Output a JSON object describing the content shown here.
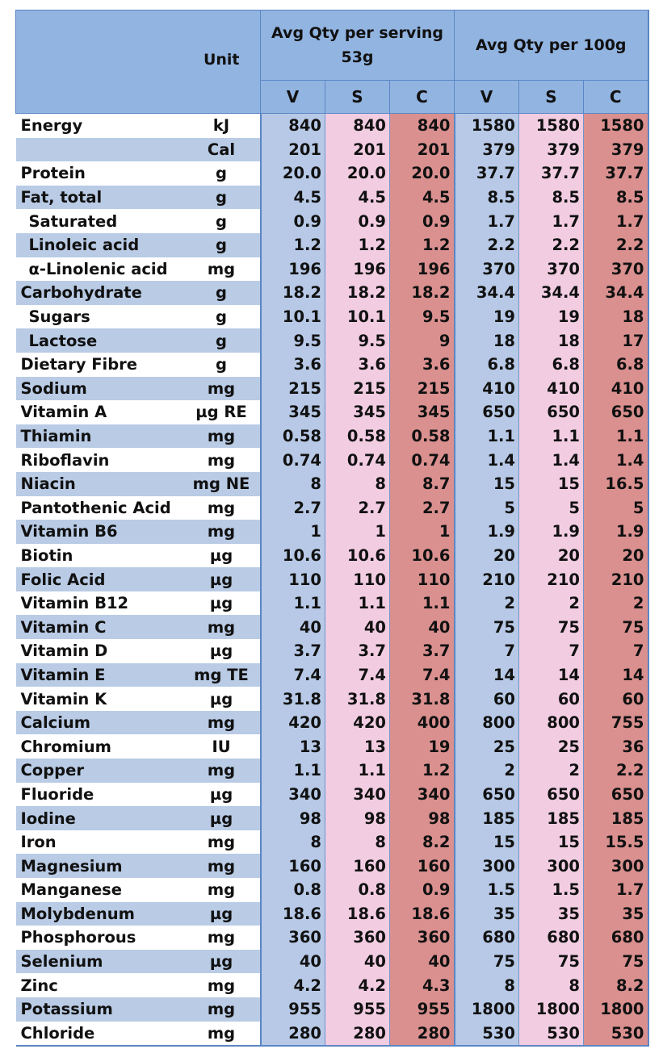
{
  "header": {
    "unit_label": "Unit",
    "per_serving_line1": "Avg Qty per serving",
    "per_serving_line2": "53g",
    "per_100g": "Avg Qty per 100g",
    "sub_cols": [
      "V",
      "S",
      "C",
      "V",
      "S",
      "C"
    ]
  },
  "rows": [
    {
      "name": "Energy",
      "unit": "kJ",
      "vals": [
        "840",
        "840",
        "840",
        "1580",
        "1580",
        "1580"
      ]
    },
    {
      "name": "",
      "unit": "Cal",
      "vals": [
        "201",
        "201",
        "201",
        "379",
        "379",
        "379"
      ]
    },
    {
      "name": "Protein",
      "unit": "g",
      "vals": [
        "20.0",
        "20.0",
        "20.0",
        "37.7",
        "37.7",
        "37.7"
      ]
    },
    {
      "name": "Fat, total",
      "unit": "g",
      "vals": [
        "4.5",
        "4.5",
        "4.5",
        "8.5",
        "8.5",
        "8.5"
      ]
    },
    {
      "name": "Saturated",
      "unit": "g",
      "sub": true,
      "vals": [
        "0.9",
        "0.9",
        "0.9",
        "1.7",
        "1.7",
        "1.7"
      ]
    },
    {
      "name": "Linoleic acid",
      "unit": "g",
      "sub": true,
      "vals": [
        "1.2",
        "1.2",
        "1.2",
        "2.2",
        "2.2",
        "2.2"
      ]
    },
    {
      "name": "α-Linolenic acid",
      "unit": "mg",
      "sub": true,
      "vals": [
        "196",
        "196",
        "196",
        "370",
        "370",
        "370"
      ]
    },
    {
      "name": "Carbohydrate",
      "unit": "g",
      "vals": [
        "18.2",
        "18.2",
        "18.2",
        "34.4",
        "34.4",
        "34.4"
      ]
    },
    {
      "name": "Sugars",
      "unit": "g",
      "sub": true,
      "vals": [
        "10.1",
        "10.1",
        "9.5",
        "19",
        "19",
        "18"
      ]
    },
    {
      "name": "Lactose",
      "unit": "g",
      "sub": true,
      "vals": [
        "9.5",
        "9.5",
        "9",
        "18",
        "18",
        "17"
      ]
    },
    {
      "name": "Dietary Fibre",
      "unit": "g",
      "vals": [
        "3.6",
        "3.6",
        "3.6",
        "6.8",
        "6.8",
        "6.8"
      ]
    },
    {
      "name": "Sodium",
      "unit": "mg",
      "vals": [
        "215",
        "215",
        "215",
        "410",
        "410",
        "410"
      ]
    },
    {
      "name": "Vitamin A",
      "unit": "µg RE",
      "vals": [
        "345",
        "345",
        "345",
        "650",
        "650",
        "650"
      ]
    },
    {
      "name": "Thiamin",
      "unit": "mg",
      "vals": [
        "0.58",
        "0.58",
        "0.58",
        "1.1",
        "1.1",
        "1.1"
      ]
    },
    {
      "name": "Riboflavin",
      "unit": "mg",
      "vals": [
        "0.74",
        "0.74",
        "0.74",
        "1.4",
        "1.4",
        "1.4"
      ]
    },
    {
      "name": "Niacin",
      "unit": "mg NE",
      "vals": [
        "8",
        "8",
        "8.7",
        "15",
        "15",
        "16.5"
      ]
    },
    {
      "name": "Pantothenic Acid",
      "unit": "mg",
      "vals": [
        "2.7",
        "2.7",
        "2.7",
        "5",
        "5",
        "5"
      ]
    },
    {
      "name": "Vitamin B6",
      "unit": "mg",
      "vals": [
        "1",
        "1",
        "1",
        "1.9",
        "1.9",
        "1.9"
      ]
    },
    {
      "name": "Biotin",
      "unit": "µg",
      "vals": [
        "10.6",
        "10.6",
        "10.6",
        "20",
        "20",
        "20"
      ]
    },
    {
      "name": "Folic Acid",
      "unit": "µg",
      "vals": [
        "110",
        "110",
        "110",
        "210",
        "210",
        "210"
      ]
    },
    {
      "name": "Vitamin B12",
      "unit": "µg",
      "vals": [
        "1.1",
        "1.1",
        "1.1",
        "2",
        "2",
        "2"
      ]
    },
    {
      "name": "Vitamin C",
      "unit": "mg",
      "vals": [
        "40",
        "40",
        "40",
        "75",
        "75",
        "75"
      ]
    },
    {
      "name": "Vitamin D",
      "unit": "µg",
      "vals": [
        "3.7",
        "3.7",
        "3.7",
        "7",
        "7",
        "7"
      ]
    },
    {
      "name": "Vitamin E",
      "unit": "mg TE",
      "vals": [
        "7.4",
        "7.4",
        "7.4",
        "14",
        "14",
        "14"
      ]
    },
    {
      "name": "Vitamin K",
      "unit": "µg",
      "vals": [
        "31.8",
        "31.8",
        "31.8",
        "60",
        "60",
        "60"
      ]
    },
    {
      "name": "Calcium",
      "unit": "mg",
      "vals": [
        "420",
        "420",
        "400",
        "800",
        "800",
        "755"
      ]
    },
    {
      "name": "Chromium",
      "unit": "IU",
      "vals": [
        "13",
        "13",
        "19",
        "25",
        "25",
        "36"
      ]
    },
    {
      "name": "Copper",
      "unit": "mg",
      "vals": [
        "1.1",
        "1.1",
        "1.2",
        "2",
        "2",
        "2.2"
      ]
    },
    {
      "name": "Fluoride",
      "unit": "µg",
      "vals": [
        "340",
        "340",
        "340",
        "650",
        "650",
        "650"
      ]
    },
    {
      "name": "Iodine",
      "unit": "µg",
      "vals": [
        "98",
        "98",
        "98",
        "185",
        "185",
        "185"
      ]
    },
    {
      "name": "Iron",
      "unit": "mg",
      "vals": [
        "8",
        "8",
        "8.2",
        "15",
        "15",
        "15.5"
      ]
    },
    {
      "name": "Magnesium",
      "unit": "mg",
      "vals": [
        "160",
        "160",
        "160",
        "300",
        "300",
        "300"
      ]
    },
    {
      "name": "Manganese",
      "unit": "mg",
      "vals": [
        "0.8",
        "0.8",
        "0.9",
        "1.5",
        "1.5",
        "1.7"
      ]
    },
    {
      "name": "Molybdenum",
      "unit": "µg",
      "vals": [
        "18.6",
        "18.6",
        "18.6",
        "35",
        "35",
        "35"
      ]
    },
    {
      "name": "Phosphorous",
      "unit": "mg",
      "vals": [
        "360",
        "360",
        "360",
        "680",
        "680",
        "680"
      ]
    },
    {
      "name": "Selenium",
      "unit": "µg",
      "vals": [
        "40",
        "40",
        "40",
        "75",
        "75",
        "75"
      ]
    },
    {
      "name": "Zinc",
      "unit": "mg",
      "vals": [
        "4.2",
        "4.2",
        "4.3",
        "8",
        "8",
        "8.2"
      ]
    },
    {
      "name": "Potassium",
      "unit": "mg",
      "vals": [
        "955",
        "955",
        "955",
        "1800",
        "1800",
        "1800"
      ]
    },
    {
      "name": "Chloride",
      "unit": "mg",
      "vals": [
        "280",
        "280",
        "280",
        "530",
        "530",
        "530"
      ]
    }
  ]
}
